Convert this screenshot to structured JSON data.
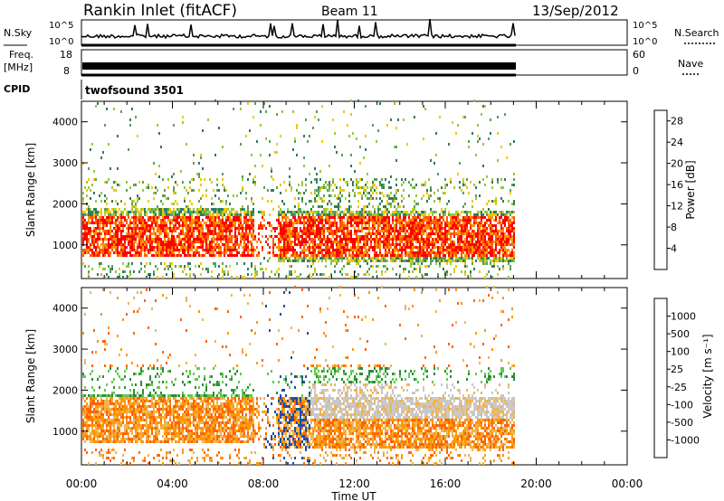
{
  "header": {
    "station": "Rankin Inlet (fitACF)",
    "beam": "Beam 11",
    "date": "13/Sep/2012"
  },
  "params": {
    "nsky_label": "N.Sky",
    "nsky_ticks": [
      "10^5",
      "10^0"
    ],
    "nsearch_label": "N.Search",
    "freq_label_1": "Freq.",
    "freq_label_2": "[MHz]",
    "freq_ticks": [
      "18",
      "8"
    ],
    "nave_label": "Nave",
    "nave_ticks": [
      "60",
      "0"
    ],
    "cpid_label": "CPID",
    "cpid_value": "twofsound 3501"
  },
  "colors": {
    "power_scale": [
      "#0000ff",
      "#1e50a0",
      "#2e7d5a",
      "#5aa05a",
      "#96c83c",
      "#f0c800",
      "#ff9600",
      "#ff5a00",
      "#ff0000"
    ],
    "velocity_scale": [
      "#ff0000",
      "#ff6400",
      "#ff9600",
      "#f0b450",
      "#c8c8c8",
      "#64c850",
      "#2e8b3a",
      "#1e50a0",
      "#0000ff"
    ]
  },
  "chart_data": [
    {
      "type": "heatmap",
      "panel": "power",
      "ylabel": "Slant Range [km]",
      "xlabel": "Time UT",
      "xticks": [
        "00:00",
        "04:00",
        "08:00",
        "12:00",
        "16:00",
        "20:00",
        "00:00"
      ],
      "xlim_hours": [
        0,
        24
      ],
      "yticks": [
        1000,
        2000,
        3000,
        4000
      ],
      "ylim_km": [
        180,
        4500
      ],
      "colorbar": {
        "label": "Power [dB]",
        "ticks": [
          4,
          8,
          12,
          16,
          20,
          24,
          28
        ],
        "range": [
          0,
          30
        ]
      },
      "data_coverage_hours": [
        0,
        19
      ]
    },
    {
      "type": "heatmap",
      "panel": "velocity",
      "ylabel": "Slant Range [km]",
      "xlabel": "Time UT",
      "xticks": [
        "00:00",
        "04:00",
        "08:00",
        "12:00",
        "16:00",
        "20:00",
        "00:00"
      ],
      "xlim_hours": [
        0,
        24
      ],
      "yticks": [
        1000,
        2000,
        3000,
        4000
      ],
      "ylim_km": [
        180,
        4500
      ],
      "colorbar": {
        "label": "Velocity [m s⁻¹]",
        "ticks": [
          "1000",
          "500",
          "100",
          "25",
          "-25",
          "-100",
          "-500",
          "-1000"
        ]
      },
      "data_coverage_hours": [
        0,
        19
      ]
    }
  ]
}
